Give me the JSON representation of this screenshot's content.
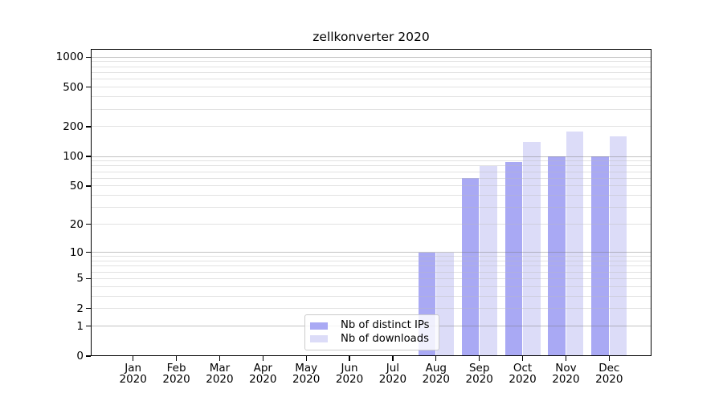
{
  "chart_data": {
    "type": "bar",
    "title": "zellkonverter 2020",
    "categories": [
      "Jan",
      "Feb",
      "Mar",
      "Apr",
      "May",
      "Jun",
      "Jul",
      "Aug",
      "Sep",
      "Oct",
      "Nov",
      "Dec"
    ],
    "category_year": "2020",
    "series": [
      {
        "name": "Nb of distinct IPs",
        "slug": "distinct-ips",
        "color": "#a9a9f4",
        "values": [
          0,
          0,
          0,
          0,
          0,
          0,
          0,
          10,
          60,
          87,
          100,
          100
        ]
      },
      {
        "name": "Nb of downloads",
        "slug": "downloads",
        "color": "#dcdcf8",
        "values": [
          0,
          0,
          0,
          0,
          0,
          0,
          0,
          10,
          80,
          140,
          180,
          160
        ]
      }
    ],
    "y_axis": {
      "ticks": [
        0,
        1,
        2,
        5,
        10,
        20,
        50,
        100,
        200,
        500,
        1000
      ],
      "scale": "log1p",
      "max": 1211,
      "major_gridlines": [
        1,
        10,
        100,
        1000
      ]
    },
    "x_axis": {
      "label_line2": "2020"
    },
    "legend": {
      "position": "lower center"
    },
    "grid": "on",
    "colors": {
      "bar_distinct_ips": "#a9a9f4",
      "bar_downloads": "#dcdcf8",
      "major_grid": "#c6c6c6",
      "minor_grid": "#e9e9e9",
      "axis": "#000000",
      "background": "#ffffff"
    }
  }
}
